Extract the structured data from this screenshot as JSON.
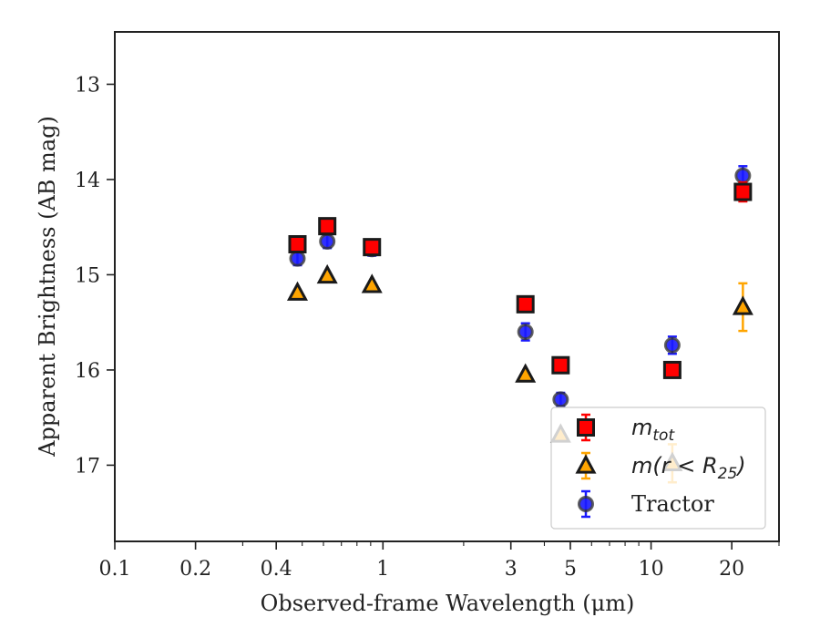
{
  "colors": {
    "mtot": "#ff0000",
    "mr25": "#ffa500",
    "tractor": "#1a1aff",
    "edge": "#1a1a1a"
  },
  "chart_data": {
    "type": "scatter",
    "xscale": "log",
    "yaxis_inverted": true,
    "xlim": [
      0.1,
      30
    ],
    "ylim": [
      17.8,
      12.45
    ],
    "xlabel": "Observed-frame Wavelength (μm)",
    "ylabel": "Apparent Brightness (AB mag)",
    "x_ticks": [
      {
        "value": 0.1,
        "label": "0.1"
      },
      {
        "value": 0.2,
        "label": "0.2"
      },
      {
        "value": 0.4,
        "label": "0.4"
      },
      {
        "value": 1,
        "label": "1"
      },
      {
        "value": 3,
        "label": "3"
      },
      {
        "value": 5,
        "label": "5"
      },
      {
        "value": 10,
        "label": "10"
      },
      {
        "value": 20,
        "label": "20"
      }
    ],
    "y_ticks": [
      {
        "value": 13,
        "label": "13"
      },
      {
        "value": 14,
        "label": "14"
      },
      {
        "value": 15,
        "label": "15"
      },
      {
        "value": 16,
        "label": "16"
      },
      {
        "value": 17,
        "label": "17"
      }
    ],
    "legend_position": "lower-right",
    "series": [
      {
        "key": "tractor",
        "marker": "circle",
        "legend": {
          "text": "Tractor"
        },
        "points": [
          {
            "x": 0.48,
            "y": 14.83,
            "err": 0.07
          },
          {
            "x": 0.62,
            "y": 14.65,
            "err": 0.07
          },
          {
            "x": 0.91,
            "y": 14.73,
            "err": 0.07
          },
          {
            "x": 3.4,
            "y": 15.6,
            "err": 0.09
          },
          {
            "x": 4.6,
            "y": 16.31,
            "err": 0.07
          },
          {
            "x": 12.0,
            "y": 15.74,
            "err": 0.09
          },
          {
            "x": 22.0,
            "y": 13.96,
            "err": 0.1
          }
        ]
      },
      {
        "key": "mr25",
        "marker": "triangle",
        "legend": {
          "base": "m(r < R",
          "sub": "25",
          "tail": ")"
        },
        "points": [
          {
            "x": 0.48,
            "y": 15.19,
            "err": 0.0
          },
          {
            "x": 0.62,
            "y": 15.01,
            "err": 0.0
          },
          {
            "x": 0.91,
            "y": 15.11,
            "err": 0.0
          },
          {
            "x": 3.4,
            "y": 16.05,
            "err": 0.0
          },
          {
            "x": 4.6,
            "y": 16.68,
            "err": 0.0
          },
          {
            "x": 12.0,
            "y": 16.98,
            "err": 0.2
          },
          {
            "x": 22.0,
            "y": 15.34,
            "err": 0.25
          }
        ]
      },
      {
        "key": "mtot",
        "marker": "square",
        "legend": {
          "base": "m",
          "sub": "tot",
          "tail": ""
        },
        "points": [
          {
            "x": 0.48,
            "y": 14.68,
            "err": 0.07
          },
          {
            "x": 0.62,
            "y": 14.49,
            "err": 0.07
          },
          {
            "x": 0.91,
            "y": 14.71,
            "err": 0.07
          },
          {
            "x": 3.4,
            "y": 15.31,
            "err": 0.08
          },
          {
            "x": 4.6,
            "y": 15.95,
            "err": 0.07
          },
          {
            "x": 12.0,
            "y": 16.0,
            "err": 0.08
          },
          {
            "x": 22.0,
            "y": 14.13,
            "err": 0.1
          }
        ]
      }
    ]
  }
}
